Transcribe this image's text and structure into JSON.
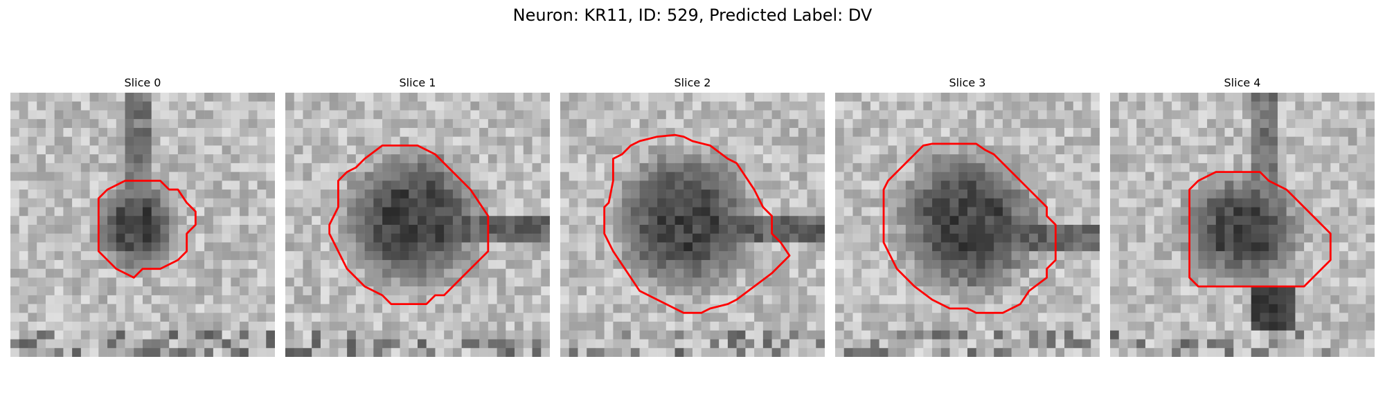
{
  "figure": {
    "title": "Neuron: KR11, ID: 529, Predicted Label: DV"
  },
  "colors": {
    "contour": "#ff0000",
    "colormap": "grayscale"
  },
  "slices": [
    {
      "title": "Slice 0"
    },
    {
      "title": "Slice 1"
    },
    {
      "title": "Slice 2"
    },
    {
      "title": "Slice 3"
    },
    {
      "title": "Slice 4"
    }
  ]
}
